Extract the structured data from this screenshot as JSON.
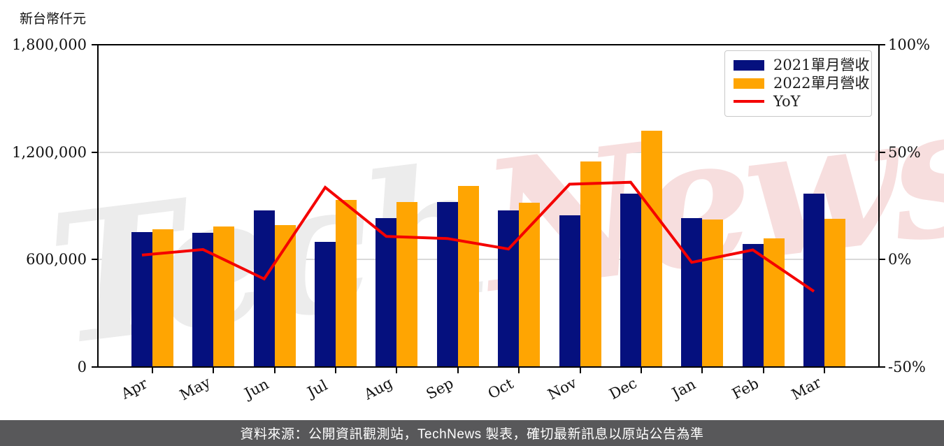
{
  "watermark": {
    "part1": "Tech",
    "part2": "News"
  },
  "footer": {
    "text": "資料來源：公開資訊觀測站，TechNews 製表，確切最新訊息以原站公告為準"
  },
  "colors": {
    "bar_2021": "#05107e",
    "bar_2022": "#ffa502",
    "yoy_line": "#f40000",
    "grid": "#d9d9d9",
    "axis": "#000000",
    "footer_bg": "#58585a",
    "footer_text": "#ffffff",
    "watermark_tech": "#ececec",
    "watermark_news": "#f7dede"
  },
  "chart_data": {
    "type": "bar",
    "subtype": "grouped bars with overlaid line (dual axis)",
    "categories": [
      "Apr",
      "May",
      "Jun",
      "Jul",
      "Aug",
      "Sep",
      "Oct",
      "Nov",
      "Dec",
      "Jan",
      "Feb",
      "Mar"
    ],
    "series": [
      {
        "name": "2021單月營收",
        "type": "bar",
        "axis": "left",
        "color": "#05107e",
        "values": [
          752000,
          751000,
          873000,
          700000,
          830000,
          920000,
          873000,
          849000,
          970000,
          833000,
          689000,
          970000
        ]
      },
      {
        "name": "2022單月營收",
        "type": "bar",
        "axis": "left",
        "color": "#ffa502",
        "values": [
          768000,
          786000,
          794000,
          935000,
          920000,
          1010000,
          916000,
          1147000,
          1319000,
          822000,
          720000,
          826000
        ]
      },
      {
        "name": "YoY",
        "type": "line",
        "axis": "right",
        "color": "#f40000",
        "values_percent": [
          2.1,
          4.7,
          -9.0,
          33.6,
          10.8,
          9.8,
          4.9,
          35.1,
          36.0,
          -1.3,
          4.5,
          -14.8
        ]
      }
    ],
    "left_axis": {
      "label": "新台幣仟元",
      "range": [
        0,
        1800000
      ],
      "tick_values": [
        0,
        600000,
        1200000,
        1800000
      ],
      "ticks": [
        "0",
        "600,000",
        "1,200,000",
        "1,800,000"
      ]
    },
    "right_axis": {
      "range": [
        -50,
        100
      ],
      "tick_values": [
        -50,
        0,
        50,
        100
      ],
      "ticks": [
        "-50%",
        "0%",
        "50%",
        "100%"
      ]
    },
    "grid": "horizontal light-gray lines at intermediate ticks",
    "legend_position": "upper right"
  }
}
